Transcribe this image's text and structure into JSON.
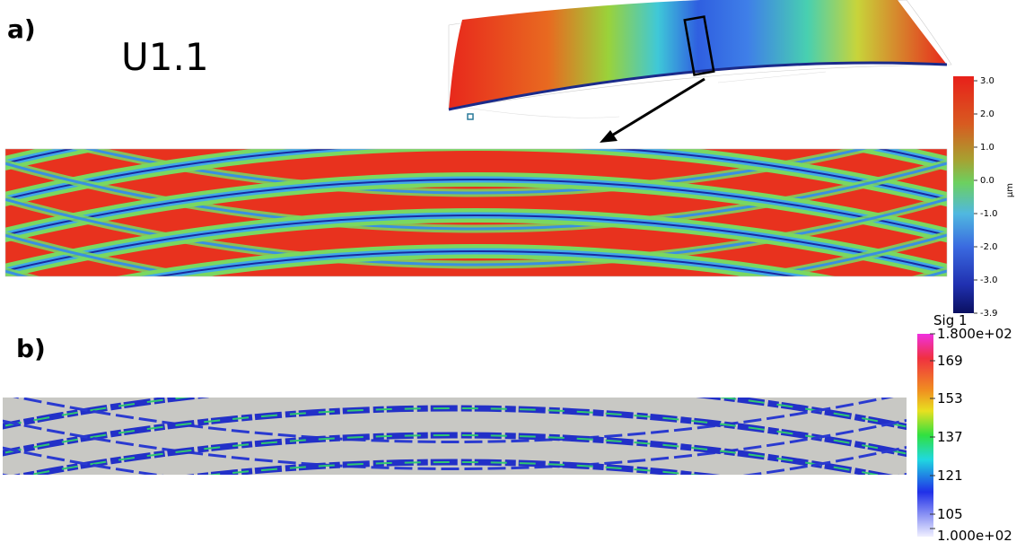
{
  "panel_a": {
    "label": "a)",
    "sample": "U1.1",
    "colorbar": {
      "ticks": [
        "3.0",
        "2.0",
        "1.0",
        "0.0",
        "-1.0",
        "-2.0",
        "-3.0",
        "-3.9"
      ],
      "unit": "µm"
    }
  },
  "panel_b": {
    "label": "b)",
    "colorbar": {
      "title": "Sig 1",
      "ticks": [
        "1.800e+02",
        "169",
        "153",
        "137",
        "121",
        "105",
        "1.000e+02"
      ]
    }
  }
}
